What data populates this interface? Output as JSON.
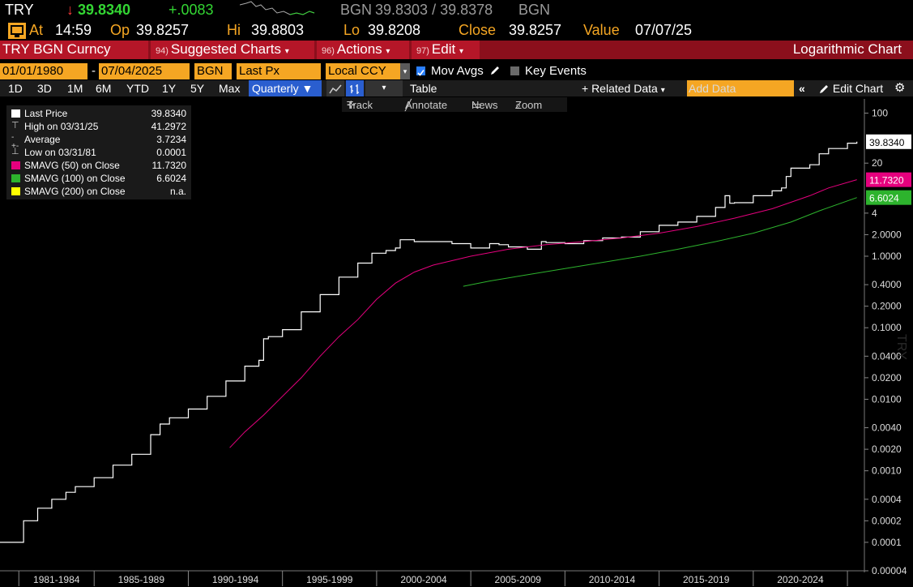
{
  "quote": {
    "ticker": "TRY",
    "arrow": "↓",
    "last": "39.8340",
    "change": "+.0083",
    "bgn_label": "BGN",
    "bid_ask": "39.8303 / 39.8378",
    "bgn_label2": "BGN",
    "at_label": "At",
    "time": "14:59",
    "open_label": "Op",
    "open": "39.8257",
    "high_label": "Hi",
    "high": "39.8803",
    "low_label": "Lo",
    "low": "39.8208",
    "close_label": "Close",
    "close": "39.8257",
    "value_label": "Value",
    "value_date": "07/07/25"
  },
  "titlebar": {
    "security": "TRY BGN Curncy",
    "suggested_num": "94)",
    "suggested": "Suggested Charts",
    "actions_num": "96)",
    "actions": "Actions",
    "edit_num": "97)",
    "edit": "Edit",
    "chart_type": "Logarithmic Chart"
  },
  "controls": {
    "start_date": "01/01/1980",
    "dash": "-",
    "end_date": "07/04/2025",
    "source": "BGN",
    "field": "Last Px",
    "currency": "Local CCY",
    "mov_avgs": "Mov Avgs",
    "key_events": "Key Events",
    "ranges": [
      "1D",
      "3D",
      "1M",
      "6M",
      "YTD",
      "1Y",
      "5Y",
      "Max"
    ],
    "period": "Quarterly",
    "table": "Table",
    "related_data": "+ Related Data",
    "add_data_placeholder": "Add Data",
    "edit_chart": "Edit Chart"
  },
  "tools": {
    "track": "Track",
    "annotate": "Annotate",
    "news": "News",
    "zoom": "Zoom"
  },
  "legend": {
    "rows": [
      {
        "label": "Last Price",
        "value": "39.8340",
        "color": "#ffffff"
      },
      {
        "label": "High on 03/31/25",
        "value": "41.2972",
        "color": ""
      },
      {
        "label": "Average",
        "value": "3.7234",
        "color": ""
      },
      {
        "label": "Low on 03/31/81",
        "value": "0.0001",
        "color": ""
      },
      {
        "label": "SMAVG (50)  on Close",
        "value": "11.7320",
        "color": "#e6007e"
      },
      {
        "label": "SMAVG (100)  on Close",
        "value": "6.6024",
        "color": "#2db32d"
      },
      {
        "label": "SMAVG (200)  on Close",
        "value": "n.a.",
        "color": "#ffff00"
      }
    ]
  },
  "chart_data": {
    "type": "line",
    "scale": "log",
    "ylim": [
      4e-05,
      150
    ],
    "xlim": [
      1980.0,
      2025.6
    ],
    "ylabel": "TRY",
    "grid": false,
    "y_ticks": [
      "100",
      "20",
      "4",
      "2.0000",
      "1.0000",
      "0.4000",
      "0.2000",
      "0.1000",
      "0.0400",
      "0.0200",
      "0.0100",
      "0.0040",
      "0.0020",
      "0.0010",
      "0.0004",
      "0.0002",
      "0.0001",
      "0.00004"
    ],
    "x_ticks": [
      "1981-1984",
      "1985-1989",
      "1990-1994",
      "1995-1999",
      "2000-2004",
      "2005-2009",
      "2010-2014",
      "2015-2019",
      "2020-2024"
    ],
    "last_label": "39.8340",
    "sma50_label": "11.7320",
    "sma100_label": "6.6024",
    "series": [
      {
        "name": "Last Price",
        "color": "#ffffff",
        "x": [
          1980.0,
          1981.2,
          1981.25,
          1982.0,
          1982.0,
          1982.75,
          1982.75,
          1983.5,
          1984.0,
          1985.0,
          1986.0,
          1987.0,
          1988.0,
          1988.5,
          1989.0,
          1990.0,
          1991.0,
          1992.0,
          1993.0,
          1993.75,
          1994.0,
          1994.25,
          1995.0,
          1996.0,
          1997.0,
          1998.0,
          1999.0,
          1999.75,
          2000.5,
          2001.0,
          2001.25,
          2002.0,
          2003.0,
          2004.0,
          2005.0,
          2006.0,
          2006.5,
          2007.0,
          2008.0,
          2008.75,
          2009.0,
          2010.0,
          2011.0,
          2012.0,
          2013.0,
          2014.0,
          2015.0,
          2016.0,
          2017.0,
          2018.0,
          2018.5,
          2018.75,
          2019.0,
          2020.0,
          2021.0,
          2021.5,
          2021.75,
          2022.0,
          2023.0,
          2023.5,
          2024.0,
          2025.0,
          2025.5
        ],
        "y": [
          0.0001,
          0.0001,
          0.0002,
          0.0002,
          0.0003,
          0.0003,
          0.0004,
          0.0005,
          0.0006,
          0.0008,
          0.0012,
          0.0017,
          0.0032,
          0.0045,
          0.0055,
          0.0073,
          0.011,
          0.018,
          0.029,
          0.035,
          0.07,
          0.075,
          0.094,
          0.167,
          0.29,
          0.51,
          0.8,
          1.1,
          1.2,
          1.3,
          1.7,
          1.6,
          1.6,
          1.5,
          1.3,
          1.5,
          1.45,
          1.35,
          1.25,
          1.6,
          1.55,
          1.5,
          1.65,
          1.8,
          1.85,
          2.2,
          2.7,
          3.0,
          3.6,
          4.8,
          7.0,
          5.5,
          5.6,
          7.0,
          8.2,
          9.0,
          13.0,
          17.0,
          19.0,
          27.0,
          32.0,
          38.0,
          39.83
        ]
      },
      {
        "name": "SMAVG (50) on Close",
        "color": "#e6007e",
        "x": [
          1992.2,
          1993.0,
          1994.0,
          1995.0,
          1996.0,
          1997.0,
          1998.0,
          1999.0,
          2000.0,
          2001.0,
          2002.0,
          2003.0,
          2005.0,
          2007.0,
          2009.0,
          2011.0,
          2013.0,
          2015.0,
          2017.0,
          2019.0,
          2021.0,
          2023.0,
          2024.0,
          2025.5
        ],
        "y": [
          0.0021,
          0.0035,
          0.006,
          0.011,
          0.02,
          0.04,
          0.075,
          0.13,
          0.25,
          0.42,
          0.6,
          0.75,
          1.0,
          1.25,
          1.45,
          1.6,
          1.8,
          2.1,
          2.6,
          3.4,
          4.6,
          7.0,
          9.0,
          11.732
        ]
      },
      {
        "name": "SMAVG (100) on Close",
        "color": "#2db32d",
        "x": [
          2004.6,
          2006.0,
          2008.0,
          2010.0,
          2012.0,
          2014.0,
          2016.0,
          2018.0,
          2020.0,
          2022.0,
          2023.5,
          2025.5
        ],
        "y": [
          0.38,
          0.45,
          0.55,
          0.67,
          0.82,
          1.0,
          1.25,
          1.6,
          2.1,
          3.0,
          4.3,
          6.6024
        ]
      }
    ]
  }
}
